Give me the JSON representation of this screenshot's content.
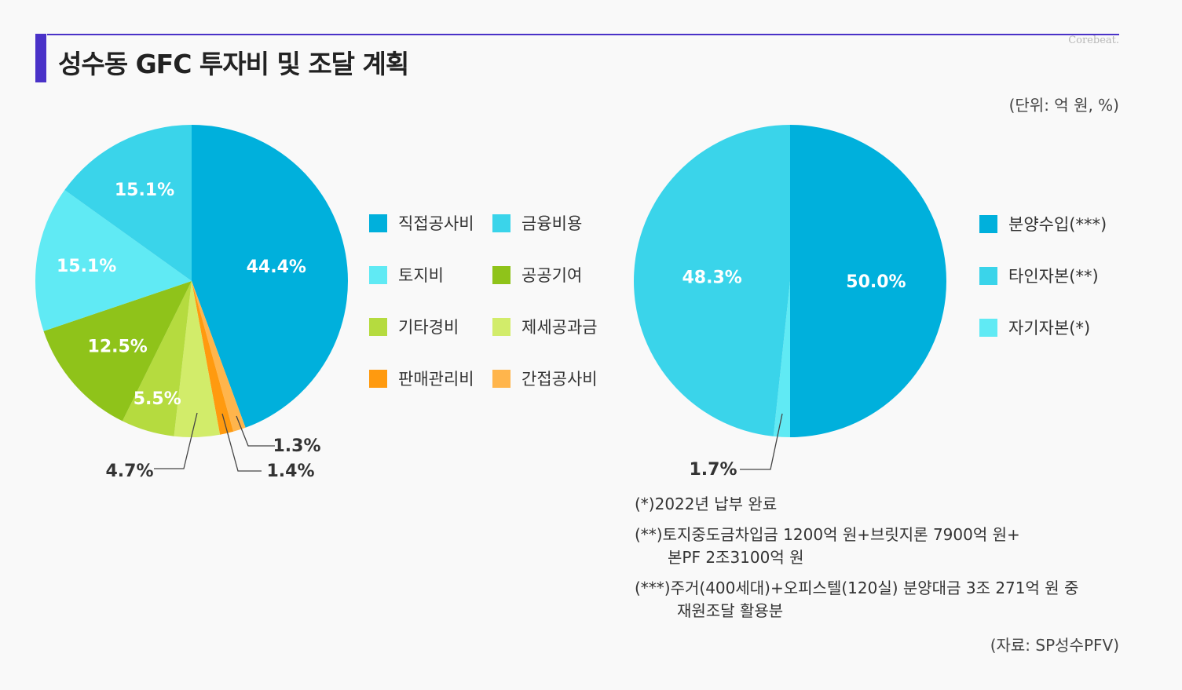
{
  "title": "성수동 GFC 투자비 및 조달 계획",
  "brand": "Corebeat.",
  "unit": "(단위: 억 원, %)",
  "source": "(자료: SP성수PFV)",
  "chart_data": [
    {
      "type": "pie",
      "title": "투자비",
      "series": [
        {
          "name": "직접공사비",
          "value": 44.4,
          "label": "44.4%",
          "color": "#00b0dc"
        },
        {
          "name": "간접공사비",
          "value": 1.3,
          "label": "1.3%",
          "color": "#ffb54c"
        },
        {
          "name": "판매관리비",
          "value": 1.4,
          "label": "1.4%",
          "color": "#ff9a0f"
        },
        {
          "name": "제세공과금",
          "value": 4.7,
          "label": "4.7%",
          "color": "#d2ec6a"
        },
        {
          "name": "기타경비",
          "value": 5.5,
          "label": "5.5%",
          "color": "#b5db3f"
        },
        {
          "name": "공공기여",
          "value": 12.5,
          "label": "12.5%",
          "color": "#8fc31a"
        },
        {
          "name": "토지비",
          "value": 15.1,
          "label": "15.1%",
          "color": "#60eaf4"
        },
        {
          "name": "금융비용",
          "value": 15.1,
          "label": "15.1%",
          "color": "#3ad4ea"
        }
      ]
    },
    {
      "type": "pie",
      "title": "조달",
      "series": [
        {
          "name": "분양수입(***)",
          "value": 50.0,
          "label": "50.0%",
          "color": "#00b0dc"
        },
        {
          "name": "자기자본(*)",
          "value": 1.7,
          "label": "1.7%",
          "color": "#60eaf4"
        },
        {
          "name": "타인자본(**)",
          "value": 48.3,
          "label": "48.3%",
          "color": "#3ad4ea"
        }
      ]
    }
  ],
  "legend1": [
    {
      "name": "직접공사비",
      "color": "#00b0dc"
    },
    {
      "name": "금융비용",
      "color": "#3ad4ea"
    },
    {
      "name": "토지비",
      "color": "#60eaf4"
    },
    {
      "name": "공공기여",
      "color": "#8fc31a"
    },
    {
      "name": "기타경비",
      "color": "#b5db3f"
    },
    {
      "name": "제세공과금",
      "color": "#d2ec6a"
    },
    {
      "name": "판매관리비",
      "color": "#ff9a0f"
    },
    {
      "name": "간접공사비",
      "color": "#ffb54c"
    }
  ],
  "legend2": [
    {
      "name": "분양수입(***)",
      "color": "#00b0dc"
    },
    {
      "name": "타인자본(**)",
      "color": "#3ad4ea"
    },
    {
      "name": "자기자본(*)",
      "color": "#60eaf4"
    }
  ],
  "notes": [
    {
      "mark": "(*)",
      "lines": [
        "2022년  납부 완료"
      ]
    },
    {
      "mark": "(**)",
      "lines": [
        "토지중도금차입금 1200억 원+브릿지론 7900억 원+",
        "본PF 2조3100억 원"
      ]
    },
    {
      "mark": "(***)",
      "lines": [
        "주거(400세대)+오피스텔(120실) 분양대금 3조 271억 원 중",
        "재원조달 활용분"
      ]
    }
  ]
}
